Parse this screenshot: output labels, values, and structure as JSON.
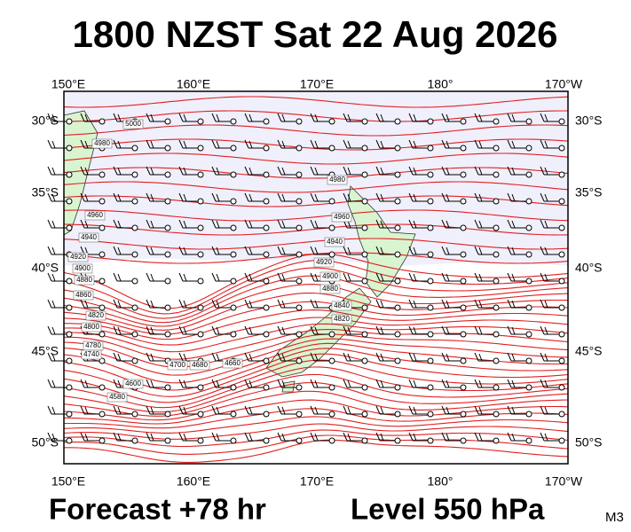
{
  "header": {
    "title": "1800 NZST Sat 22 Aug 2026"
  },
  "map": {
    "lon_labels": [
      "150°E",
      "160°E",
      "170°E",
      "180°",
      "170°W"
    ],
    "lat_labels": [
      "30°S",
      "35°S",
      "40°S",
      "45°S",
      "50°S"
    ],
    "contour_labels": [
      "5000",
      "4980",
      "4980",
      "4960",
      "4960",
      "4940",
      "4940",
      "4920",
      "4920",
      "4900",
      "4900",
      "4880",
      "4880",
      "4860",
      "4840",
      "4820",
      "4820",
      "4800",
      "4780",
      "4740",
      "4700",
      "4680",
      "4660",
      "4600",
      "4580"
    ]
  },
  "footer": {
    "forecast": "Forecast +78 hr",
    "level": "Level 550 hPa",
    "code": "M3"
  }
}
